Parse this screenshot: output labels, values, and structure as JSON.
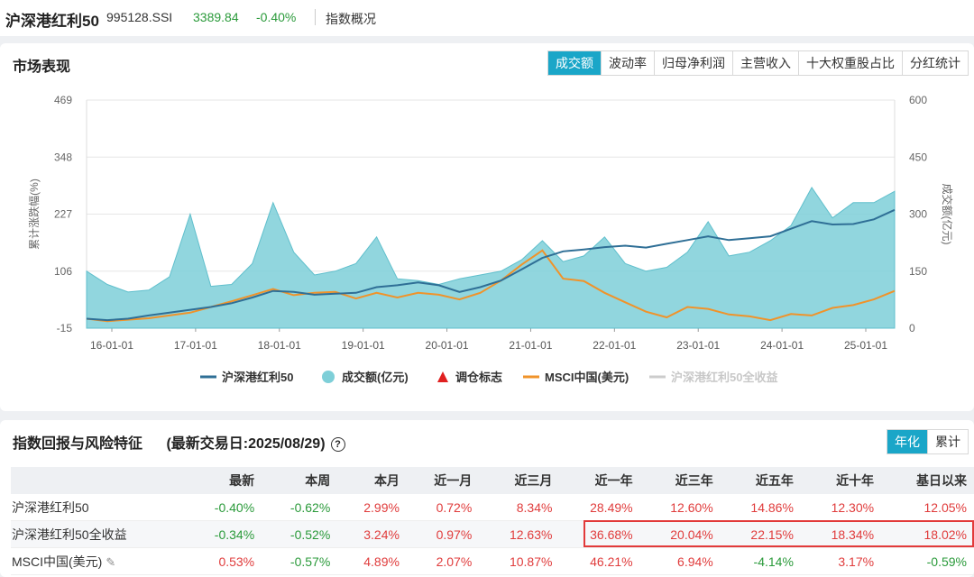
{
  "header": {
    "name": "沪深港红利50",
    "code": "995128.SSI",
    "price": "3389.84",
    "change": "-0.40%",
    "tab": "指数概况"
  },
  "market": {
    "title": "市场表现",
    "tabs": [
      "成交额",
      "波动率",
      "归母净利润",
      "主营收入",
      "十大权重股占比",
      "分红统计"
    ],
    "active_tab": 0
  },
  "chart_data": {
    "type": "line",
    "left_axis": {
      "label": "累计涨跌幅(%)",
      "ticks": [
        "469",
        "348",
        "227",
        "106",
        "-15"
      ],
      "range": [
        -15,
        469
      ]
    },
    "right_axis": {
      "label": "成交额(亿元)",
      "ticks": [
        "600",
        "450",
        "300",
        "150",
        "0"
      ],
      "range": [
        0,
        600
      ]
    },
    "x_ticks": [
      "16-01-01",
      "17-01-01",
      "18-01-01",
      "19-01-01",
      "20-01-01",
      "21-01-01",
      "22-01-01",
      "23-01-01",
      "24-01-01",
      "25-01-01"
    ],
    "x": [
      "2015-10",
      "2016-01",
      "2016-04",
      "2016-07",
      "2016-10",
      "2017-01",
      "2017-04",
      "2017-07",
      "2017-10",
      "2018-01",
      "2018-04",
      "2018-07",
      "2018-10",
      "2019-01",
      "2019-04",
      "2019-07",
      "2019-10",
      "2020-01",
      "2020-04",
      "2020-07",
      "2020-10",
      "2021-01",
      "2021-04",
      "2021-07",
      "2021-10",
      "2022-01",
      "2022-04",
      "2022-07",
      "2022-10",
      "2023-01",
      "2023-04",
      "2023-07",
      "2023-10",
      "2024-01",
      "2024-04",
      "2024-07",
      "2024-10",
      "2025-01",
      "2025-04",
      "2025-08"
    ],
    "series": [
      {
        "name": "沪深港红利50",
        "color": "#2f6f96",
        "values": [
          5,
          2,
          5,
          12,
          18,
          24,
          30,
          38,
          50,
          64,
          62,
          56,
          58,
          60,
          72,
          76,
          82,
          76,
          62,
          72,
          86,
          110,
          134,
          148,
          152,
          157,
          160,
          156,
          164,
          172,
          180,
          172,
          176,
          180,
          196,
          212,
          205,
          206,
          216,
          236
        ]
      },
      {
        "name": "成交额(亿元)",
        "color": "#7ecfd8",
        "values": [
          150,
          115,
          95,
          100,
          135,
          300,
          110,
          115,
          170,
          330,
          200,
          140,
          150,
          170,
          240,
          130,
          125,
          115,
          130,
          140,
          150,
          180,
          230,
          175,
          190,
          240,
          170,
          150,
          160,
          200,
          280,
          190,
          200,
          230,
          270,
          370,
          290,
          330,
          330,
          360
        ]
      },
      {
        "name": "MSCI中国(美元)",
        "color": "#f0932a",
        "values": [
          5,
          0,
          3,
          6,
          12,
          18,
          30,
          42,
          55,
          68,
          55,
          60,
          62,
          48,
          60,
          50,
          60,
          56,
          46,
          60,
          86,
          120,
          150,
          90,
          85,
          60,
          40,
          20,
          8,
          30,
          26,
          14,
          10,
          2,
          15,
          12,
          28,
          34,
          46,
          64
        ]
      }
    ],
    "legend": [
      {
        "label": "沪深港红利50",
        "marker": "line",
        "color": "#2f6f96"
      },
      {
        "label": "成交额(亿元)",
        "marker": "dot",
        "color": "#7ecfd8"
      },
      {
        "label": "调仓标志",
        "marker": "triangle",
        "color": "#e02020"
      },
      {
        "label": "MSCI中国(美元)",
        "marker": "line",
        "color": "#f0932a"
      },
      {
        "label": "沪深港红利50全收益",
        "marker": "line",
        "color": "#cccccc"
      }
    ]
  },
  "returns": {
    "title": "指数回报与风险特征",
    "subtitle": "(最新交易日:2025/08/29)",
    "help_icon": "?",
    "mode_tabs": [
      "年化",
      "累计"
    ],
    "columns": [
      "",
      "最新",
      "本周",
      "本月",
      "近一月",
      "近三月",
      "近一年",
      "近三年",
      "近五年",
      "近十年",
      "基日以来"
    ],
    "rows": [
      {
        "name": "沪深港红利50",
        "values": [
          "-0.40%",
          "-0.62%",
          "2.99%",
          "0.72%",
          "8.34%",
          "28.49%",
          "12.60%",
          "14.86%",
          "12.30%",
          "12.05%"
        ]
      },
      {
        "name": "沪深港红利50全收益",
        "values": [
          "-0.34%",
          "-0.52%",
          "3.24%",
          "0.97%",
          "12.63%",
          "36.68%",
          "20.04%",
          "22.15%",
          "18.34%",
          "18.02%"
        ]
      },
      {
        "name": "MSCI中国(美元)",
        "values": [
          "0.53%",
          "-0.57%",
          "4.89%",
          "2.07%",
          "10.87%",
          "46.21%",
          "6.94%",
          "-4.14%",
          "3.17%",
          "-0.59%"
        ]
      }
    ],
    "edit_icon": "✎"
  }
}
